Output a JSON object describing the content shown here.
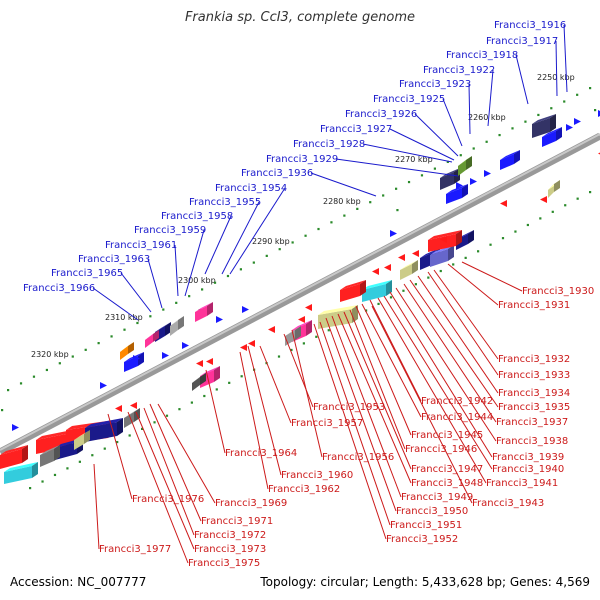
{
  "title": "Frankia sp. CcI3, complete genome",
  "accession": "Accession: NC_007777",
  "summary": "Topology: circular; Length: 5,433,628 bp; Genes: 4,569",
  "ticks": [
    "2250 kbp",
    "2260 kbp",
    "2270 kbp",
    "2280 kbp",
    "2290 kbp",
    "2300 kbp",
    "2310 kbp",
    "2320 kbp"
  ],
  "labels_top": [
    "Francci3_1916",
    "Francci3_1917",
    "Francci3_1918",
    "Francci3_1922",
    "Francci3_1923",
    "Francci3_1925",
    "Francci3_1926",
    "Francci3_1927",
    "Francci3_1928",
    "Francci3_1929",
    "Francci3_1936",
    "Francci3_1954",
    "Francci3_1955",
    "Francci3_1958",
    "Francci3_1959",
    "Francci3_1961",
    "Francci3_1963",
    "Francci3_1965",
    "Francci3_1966"
  ],
  "labels_bottom": [
    "Francci3_1930",
    "Francci3_1931",
    "Francci3_1932",
    "Francci3_1933",
    "Francci3_1934",
    "Francci3_1935",
    "Francci3_1937",
    "Francci3_1938",
    "Francci3_1939",
    "Francci3_1940",
    "Francci3_1941",
    "Francci3_1942",
    "Francci3_1943",
    "Francci3_1944",
    "Francci3_1945",
    "Francci3_1946",
    "Francci3_1947",
    "Francci3_1948",
    "Francci3_1949",
    "Francci3_1950",
    "Francci3_1951",
    "Francci3_1952",
    "Francci3_1953",
    "Francci3_1956",
    "Francci3_1957",
    "Francci3_1960",
    "Francci3_1962",
    "Francci3_1964",
    "Francci3_1969",
    "Francci3_1971",
    "Francci3_1972",
    "Francci3_1973",
    "Francci3_1975",
    "Francci3_1976",
    "Francci3_1977"
  ],
  "colors": {
    "forward_gene": "#1a1aff",
    "reverse_gene": "#ff1a1a",
    "backbone": "#888888",
    "tick_dot": "#2a8a2a",
    "label_blue": "#1a1acc",
    "label_red": "#cc1a1a"
  }
}
